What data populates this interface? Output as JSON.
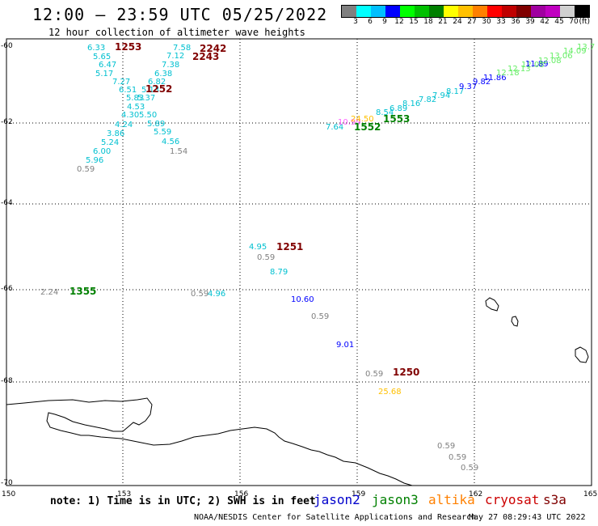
{
  "header": {
    "title": "12:00 — 23:59 UTC 05/25/2022",
    "subtitle": "12 hour collection of altimeter wave heights"
  },
  "legend": {
    "colors": [
      "#808080",
      "#00ffff",
      "#00bfff",
      "#0000ff",
      "#00ff00",
      "#00c000",
      "#008000",
      "#ffff00",
      "#ffc000",
      "#ff8000",
      "#ff0000",
      "#c00000",
      "#800000",
      "#a000a0",
      "#c000c0",
      "#d0d0d0",
      "#000000"
    ],
    "labels": [
      "3",
      "6",
      "9",
      "12",
      "15",
      "18",
      "21",
      "24",
      "27",
      "30",
      "33",
      "36",
      "39",
      "42",
      "45",
      "70"
    ],
    "unit": "(ft)"
  },
  "axes": {
    "lat_labels": [
      "-60",
      "-62",
      "-64",
      "-66",
      "-68",
      "-70"
    ],
    "lon_labels": [
      "150",
      "153",
      "156",
      "159",
      "162",
      "165"
    ]
  },
  "points": [
    {
      "t": "6.33",
      "c": "#00c0d0"
    },
    {
      "t": "5.65",
      "c": "#00c0d0"
    },
    {
      "t": "6.47",
      "c": "#00c0d0"
    },
    {
      "t": "5.17",
      "c": "#00c0d0"
    },
    {
      "t": "7.27",
      "c": "#00c0d0"
    },
    {
      "t": "6.51",
      "c": "#00c0d0"
    },
    {
      "t": "5.83",
      "c": "#00c0d0"
    },
    {
      "t": "4.53",
      "c": "#00c0d0"
    },
    {
      "t": "4.30",
      "c": "#00c0d0"
    },
    {
      "t": "4.24",
      "c": "#00c0d0"
    },
    {
      "t": "3.86",
      "c": "#00c0d0"
    },
    {
      "t": "5.24",
      "c": "#00c0d0"
    },
    {
      "t": "6.00",
      "c": "#00c0d0"
    },
    {
      "t": "5.96",
      "c": "#00c0d0"
    },
    {
      "t": "0.59",
      "c": "#808080"
    },
    {
      "t": "7.58",
      "c": "#00c0d0"
    },
    {
      "t": "7.12",
      "c": "#00c0d0"
    },
    {
      "t": "7.38",
      "c": "#00c0d0"
    },
    {
      "t": "6.38",
      "c": "#00c0d0"
    },
    {
      "t": "6.82",
      "c": "#00c0d0"
    },
    {
      "t": "5.13",
      "c": "#00c0d0"
    },
    {
      "t": "5.37",
      "c": "#00c0d0"
    },
    {
      "t": "5.50",
      "c": "#00c0d0"
    },
    {
      "t": "5.89",
      "c": "#00c0d0"
    },
    {
      "t": "5.59",
      "c": "#00c0d0"
    },
    {
      "t": "4.56",
      "c": "#00c0d0"
    },
    {
      "t": "1.54",
      "c": "#808080"
    },
    {
      "t": "7.64",
      "c": "#00c0d0"
    },
    {
      "t": "10.99",
      "c": "#ff60ff"
    },
    {
      "t": "24.50",
      "c": "#ffc000"
    },
    {
      "t": "8.54",
      "c": "#00c0d0"
    },
    {
      "t": "6.89",
      "c": "#00c0d0"
    },
    {
      "t": "8.16",
      "c": "#00c0d0"
    },
    {
      "t": "7.82",
      "c": "#00c0d0"
    },
    {
      "t": "7.94",
      "c": "#00c0d0"
    },
    {
      "t": "8.17",
      "c": "#00c0d0"
    },
    {
      "t": "9.37",
      "c": "#0000ff"
    },
    {
      "t": "9.82",
      "c": "#0000ff"
    },
    {
      "t": "11.86",
      "c": "#0000ff"
    },
    {
      "t": "12.18",
      "c": "#66ee66"
    },
    {
      "t": "12.13",
      "c": "#66ee66"
    },
    {
      "t": "12.08",
      "c": "#66ee66"
    },
    {
      "t": "11.89",
      "c": "#0000ff"
    },
    {
      "t": "12.08",
      "c": "#66ee66"
    },
    {
      "t": "13.06",
      "c": "#66ee66"
    },
    {
      "t": "14.09",
      "c": "#66ee66"
    },
    {
      "t": "13.7",
      "c": "#66ee66"
    },
    {
      "t": "4.95",
      "c": "#00c0d0"
    },
    {
      "t": "0.59",
      "c": "#808080"
    },
    {
      "t": "8.79",
      "c": "#00c0d0"
    },
    {
      "t": "2.24",
      "c": "#808080"
    },
    {
      "t": "0.59",
      "c": "#808080"
    },
    {
      "t": "4.96",
      "c": "#00c0d0"
    },
    {
      "t": "10.60",
      "c": "#0000ff"
    },
    {
      "t": "0.59",
      "c": "#808080"
    },
    {
      "t": "9.01",
      "c": "#0000ff"
    },
    {
      "t": "0.59",
      "c": "#808080"
    },
    {
      "t": "25.68",
      "c": "#ffc000"
    },
    {
      "t": "0.59",
      "c": "#808080"
    },
    {
      "t": "0.59",
      "c": "#808080"
    },
    {
      "t": "0.59",
      "c": "#808080"
    }
  ],
  "times": [
    {
      "t": "1253",
      "c": "#800000"
    },
    {
      "t": "2242",
      "c": "#800000"
    },
    {
      "t": "2243",
      "c": "#800000"
    },
    {
      "t": "1252",
      "c": "#800000"
    },
    {
      "t": "1553",
      "c": "#008000"
    },
    {
      "t": "1552",
      "c": "#008000"
    },
    {
      "t": "1251",
      "c": "#800000"
    },
    {
      "t": "1355",
      "c": "#008000"
    },
    {
      "t": "1250",
      "c": "#800000"
    }
  ],
  "footer": {
    "note": "note: 1) Time is in UTC; 2) SWH is in feet",
    "satellites": [
      {
        "name": "jason2",
        "color": "#0000cc"
      },
      {
        "name": "jason3",
        "color": "#008000"
      },
      {
        "name": "altika",
        "color": "#ff8000"
      },
      {
        "name": "cryosat",
        "color": "#cc0000"
      },
      {
        "name": "s3a",
        "color": "#800000"
      }
    ],
    "credit": "NOAA/NESDIS Center for Satellite Applications and Research",
    "timestamp": "May 27 08:29:43 UTC 2022"
  }
}
